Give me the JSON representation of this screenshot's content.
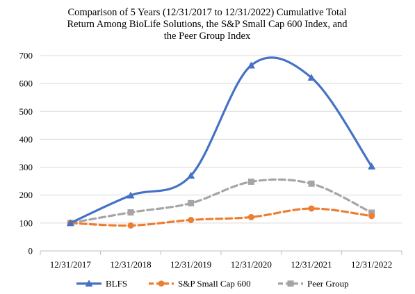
{
  "chart_data": {
    "type": "line",
    "title_lines": [
      "Comparison of 5 Years (12/31/2017 to 12/31/2022) Cumulative Total",
      "Return Among BioLife Solutions, the S&P Small Cap 600  Index, and",
      "the Peer Group Index"
    ],
    "categories": [
      "12/31/2017",
      "12/31/2018",
      "12/31/2019",
      "12/31/2020",
      "12/31/2021",
      "12/31/2022"
    ],
    "ylim": [
      0,
      700
    ],
    "yticks": [
      0,
      100,
      200,
      300,
      400,
      500,
      600,
      700
    ],
    "grid": true,
    "legend_position": "bottom",
    "series": [
      {
        "name": "BLFS",
        "values": [
          100,
          199,
          270,
          665,
          621,
          303
        ],
        "color": "#4472C4",
        "marker": "triangle",
        "dash": "solid",
        "smooth": true
      },
      {
        "name": "S&P Small Cap 600",
        "values": [
          100,
          91,
          111,
          121,
          152,
          125
        ],
        "color": "#ED7D31",
        "marker": "circle",
        "dash": "dashed",
        "smooth": true
      },
      {
        "name": "Peer Group",
        "values": [
          100,
          138,
          171,
          248,
          241,
          137
        ],
        "color": "#A5A5A5",
        "marker": "square",
        "dash": "dashed",
        "smooth": true
      }
    ]
  }
}
